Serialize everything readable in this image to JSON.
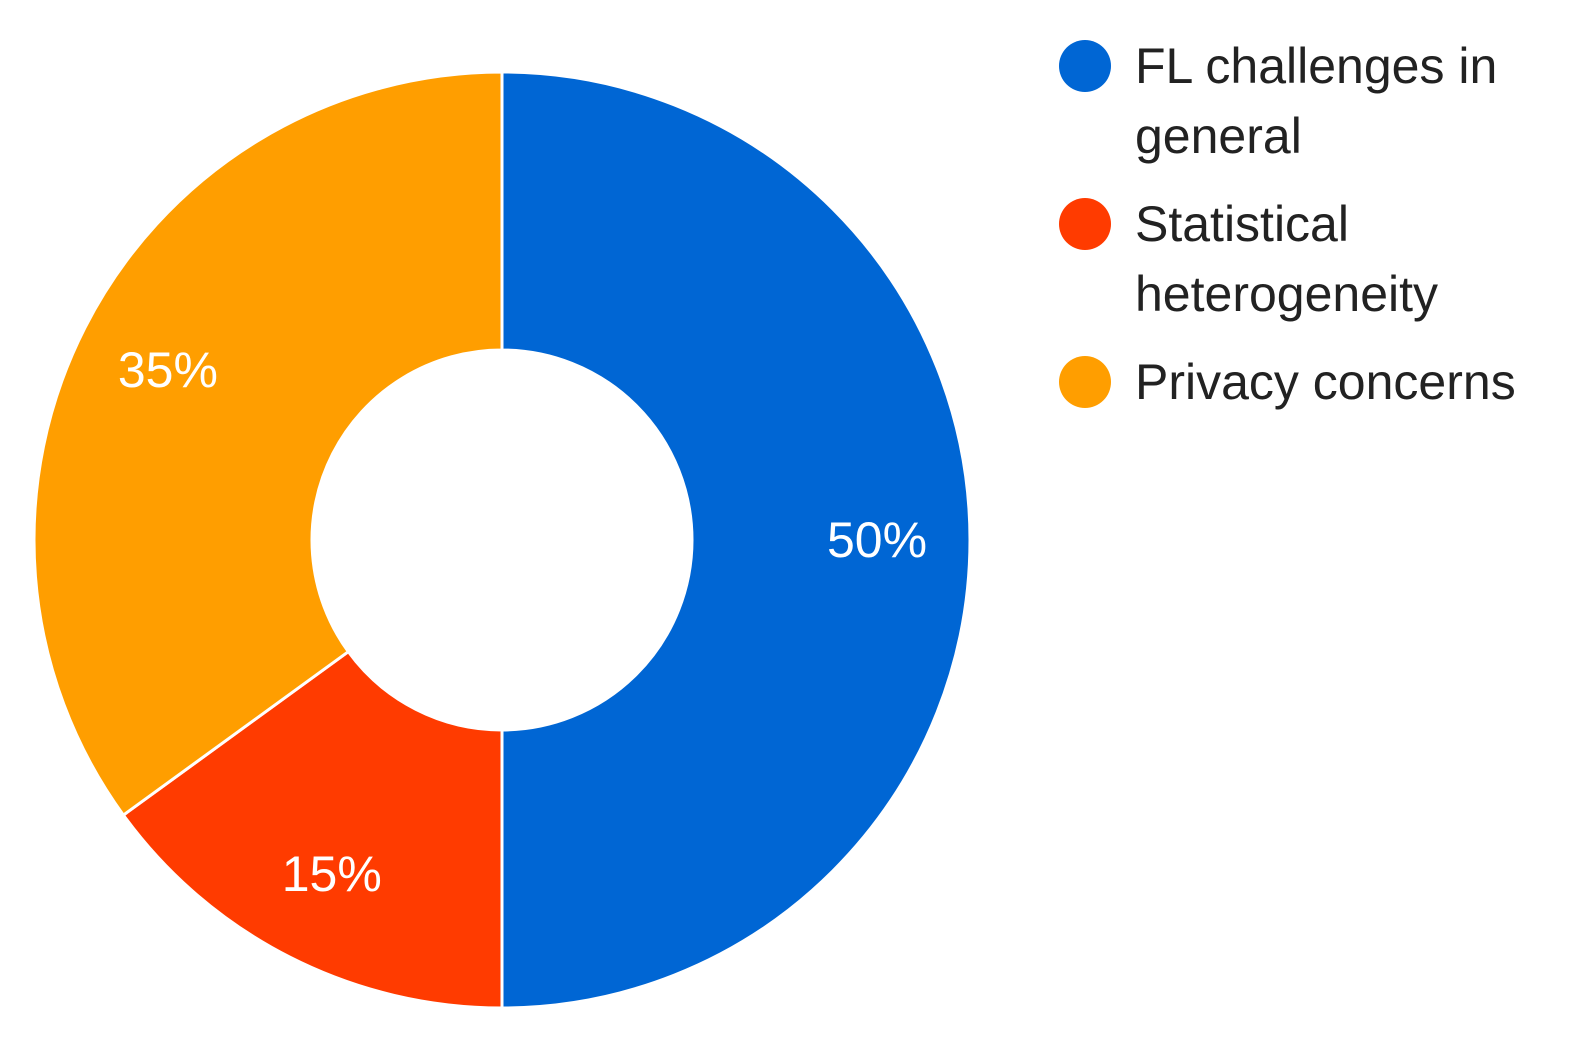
{
  "chart_data": {
    "type": "pie",
    "variant": "donut",
    "title": "",
    "slices": [
      {
        "label": "FL challenges in general",
        "label_lines": [
          "FL challenges in",
          "general"
        ],
        "value": 50,
        "display": "50%",
        "color": "#0066D4"
      },
      {
        "label": "Statistical heterogeneity",
        "label_lines": [
          "Statistical",
          "heterogeneity"
        ],
        "value": 15,
        "display": "15%",
        "color": "#FF3B00"
      },
      {
        "label": "Privacy concerns",
        "label_lines": [
          "Privacy concerns"
        ],
        "value": 35,
        "display": "35%",
        "color": "#FF9E00"
      }
    ],
    "legend_position": "right"
  }
}
